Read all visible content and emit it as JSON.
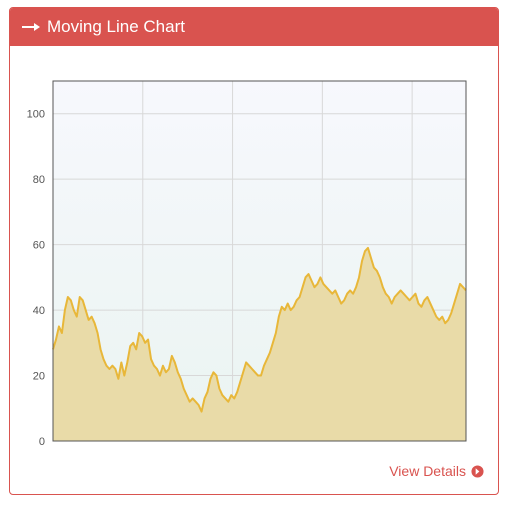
{
  "panel": {
    "title": "Moving Line Chart",
    "title_icon": "long-arrow-right-icon",
    "footer_link": "View Details",
    "footer_icon": "arrow-circle-right-icon",
    "accent_color": "#d9534f"
  },
  "chart_data": {
    "type": "area",
    "title": "",
    "xlabel": "",
    "ylabel": "",
    "ylim": [
      0,
      110
    ],
    "yticks": [
      0,
      20,
      40,
      60,
      80,
      100
    ],
    "xticks": [],
    "grid": true,
    "legend": "none",
    "line_color": "#e8b739",
    "fill_color": "#e9dba8",
    "series": [
      {
        "values": [
          28,
          31,
          35,
          33,
          40,
          44,
          43,
          40,
          38,
          44,
          43,
          40,
          37,
          38,
          36,
          33,
          28,
          25,
          23,
          22,
          23,
          22,
          19,
          24,
          20,
          24,
          29,
          30,
          28,
          33,
          32,
          30,
          31,
          25,
          23,
          22,
          20,
          23,
          21,
          22,
          26,
          24,
          21,
          19,
          16,
          14,
          12,
          13,
          12,
          11,
          9,
          13,
          15,
          19,
          21,
          20,
          16,
          14,
          13,
          12,
          14,
          13,
          15,
          18,
          21,
          24,
          23,
          22,
          21,
          20,
          20,
          23,
          25,
          27,
          30,
          33,
          38,
          41,
          40,
          42,
          40,
          41,
          43,
          44,
          47,
          50,
          51,
          49,
          47,
          48,
          50,
          48,
          47,
          46,
          45,
          46,
          44,
          42,
          43,
          45,
          46,
          45,
          47,
          50,
          55,
          58,
          59,
          56,
          53,
          52,
          50,
          47,
          45,
          44,
          42,
          44,
          45,
          46,
          45,
          44,
          43,
          44,
          45,
          42,
          41,
          43,
          44,
          42,
          40,
          38,
          37,
          38,
          36,
          37,
          39,
          42,
          45,
          48,
          47,
          46
        ]
      }
    ]
  }
}
